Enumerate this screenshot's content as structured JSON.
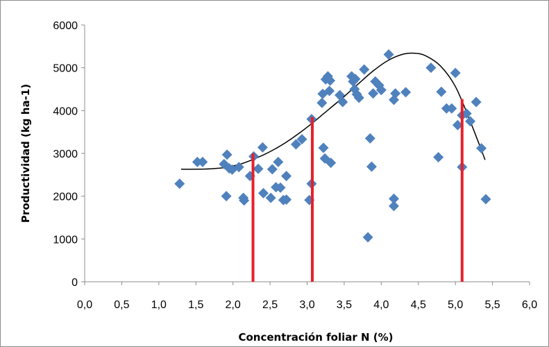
{
  "chart_data": {
    "type": "scatter",
    "xlabel": "Concentración foliar N (%)",
    "ylabel": "Productividad  (kg ha-1)",
    "xlim": [
      0.0,
      6.0
    ],
    "ylim": [
      0,
      6000
    ],
    "x_tick_labels": [
      "0,0",
      "0,5",
      "1,0",
      "1,5",
      "2,0",
      "2,5",
      "3,0",
      "3,5",
      "4,0",
      "4,5",
      "5,0",
      "5,5",
      "6,0"
    ],
    "y_tick_labels": [
      "0",
      "1000",
      "2000",
      "3000",
      "4000",
      "5000",
      "6000"
    ],
    "grid": false,
    "legend": "none",
    "colors": {
      "points": "#4f81bd",
      "trendline": "#000000",
      "reference_lines": "#e8202a"
    },
    "series": [
      {
        "marker": "diamond",
        "points": [
          [
            1.28,
            2290
          ],
          [
            1.52,
            2800
          ],
          [
            1.59,
            2800
          ],
          [
            1.88,
            2750
          ],
          [
            1.92,
            2970
          ],
          [
            1.95,
            2650
          ],
          [
            1.99,
            2620
          ],
          [
            2.08,
            2680
          ],
          [
            1.91,
            2000
          ],
          [
            2.14,
            1960
          ],
          [
            2.15,
            1900
          ],
          [
            2.23,
            2470
          ],
          [
            2.28,
            2930
          ],
          [
            2.34,
            2640
          ],
          [
            2.4,
            3140
          ],
          [
            2.41,
            2070
          ],
          [
            2.51,
            1960
          ],
          [
            2.53,
            2630
          ],
          [
            2.58,
            2210
          ],
          [
            2.61,
            2800
          ],
          [
            2.64,
            2200
          ],
          [
            2.68,
            1910
          ],
          [
            2.72,
            1920
          ],
          [
            2.72,
            2470
          ],
          [
            2.85,
            3210
          ],
          [
            2.93,
            3330
          ],
          [
            3.03,
            1910
          ],
          [
            3.06,
            2290
          ],
          [
            3.06,
            3800
          ],
          [
            3.2,
            4180
          ],
          [
            3.21,
            4390
          ],
          [
            3.22,
            3130
          ],
          [
            3.24,
            2880
          ],
          [
            3.25,
            4730
          ],
          [
            3.28,
            4800
          ],
          [
            3.3,
            4460
          ],
          [
            3.31,
            4700
          ],
          [
            3.32,
            2780
          ],
          [
            3.44,
            4360
          ],
          [
            3.48,
            4200
          ],
          [
            3.6,
            4800
          ],
          [
            3.62,
            4680
          ],
          [
            3.64,
            4500
          ],
          [
            3.65,
            4740
          ],
          [
            3.67,
            4380
          ],
          [
            3.7,
            4300
          ],
          [
            3.77,
            4960
          ],
          [
            3.82,
            1040
          ],
          [
            3.85,
            3350
          ],
          [
            3.87,
            2690
          ],
          [
            3.89,
            4400
          ],
          [
            3.92,
            4680
          ],
          [
            3.97,
            4590
          ],
          [
            4.0,
            4480
          ],
          [
            4.1,
            5310
          ],
          [
            4.17,
            4250
          ],
          [
            4.19,
            4400
          ],
          [
            4.17,
            1940
          ],
          [
            4.17,
            1770
          ],
          [
            4.33,
            4430
          ],
          [
            4.67,
            5000
          ],
          [
            4.77,
            2910
          ],
          [
            4.81,
            4440
          ],
          [
            4.88,
            4050
          ],
          [
            4.95,
            4050
          ],
          [
            5.0,
            4880
          ],
          [
            5.03,
            3660
          ],
          [
            5.09,
            3890
          ],
          [
            5.09,
            2680
          ],
          [
            5.15,
            3930
          ],
          [
            5.2,
            3750
          ],
          [
            5.28,
            4200
          ],
          [
            5.35,
            3120
          ],
          [
            5.41,
            1930
          ]
        ]
      }
    ],
    "trendline": {
      "type": "polynomial",
      "points": [
        [
          1.3,
          2630
        ],
        [
          1.5,
          2630
        ],
        [
          1.7,
          2640
        ],
        [
          1.9,
          2670
        ],
        [
          2.1,
          2750
        ],
        [
          2.3,
          2880
        ],
        [
          2.5,
          3040
        ],
        [
          2.7,
          3240
        ],
        [
          2.9,
          3480
        ],
        [
          3.1,
          3750
        ],
        [
          3.3,
          4040
        ],
        [
          3.5,
          4330
        ],
        [
          3.7,
          4640
        ],
        [
          3.9,
          4940
        ],
        [
          4.1,
          5180
        ],
        [
          4.3,
          5320
        ],
        [
          4.45,
          5340
        ],
        [
          4.6,
          5280
        ],
        [
          4.8,
          5040
        ],
        [
          5.0,
          4560
        ],
        [
          5.2,
          3750
        ],
        [
          5.4,
          2850
        ]
      ]
    },
    "reference_lines": [
      {
        "x": 2.27,
        "y": 3000
      },
      {
        "x": 3.07,
        "y": 3850
      },
      {
        "x": 5.09,
        "y": 4270
      }
    ]
  }
}
